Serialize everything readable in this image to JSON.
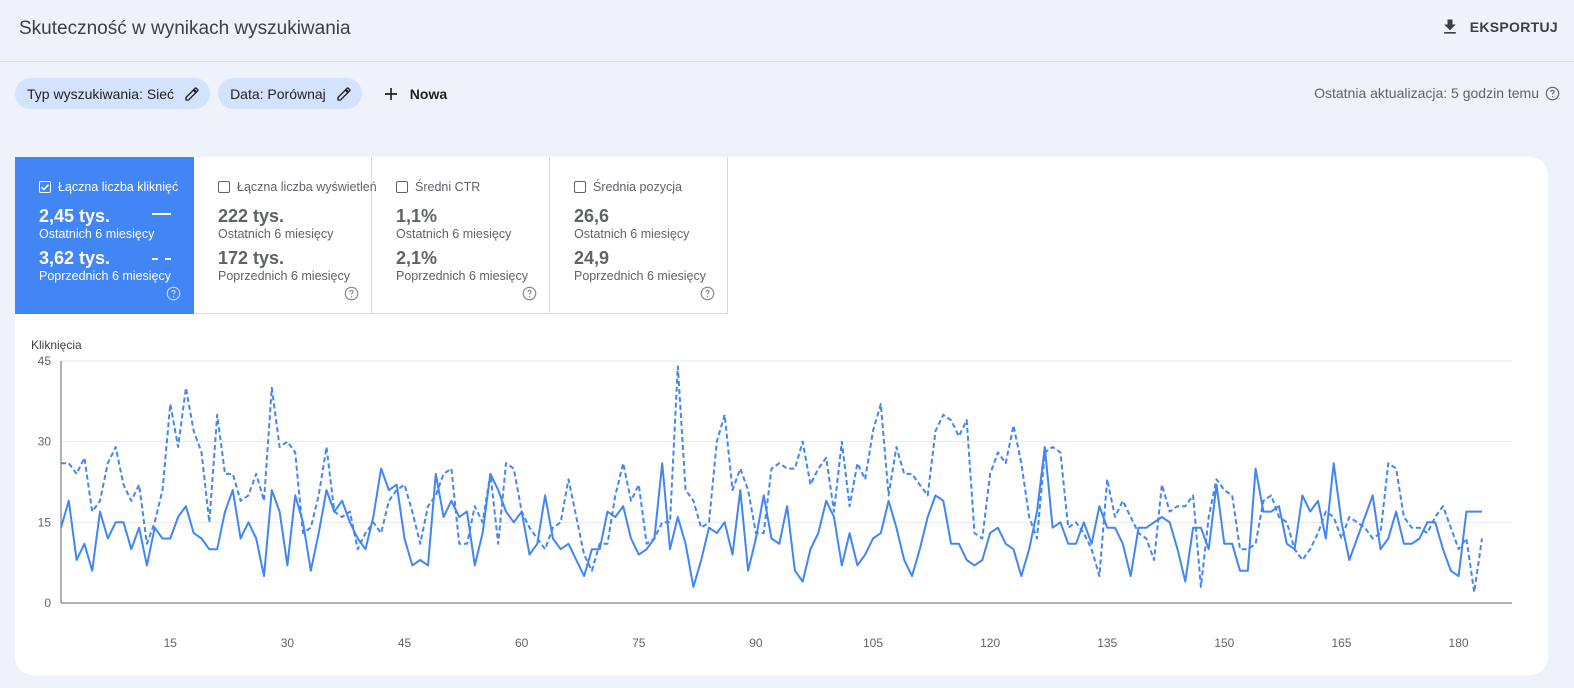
{
  "header": {
    "title": "Skuteczność w wynikach wyszukiwania",
    "export_label": "EKSPORTUJ"
  },
  "filters": {
    "chips": [
      {
        "label": "Typ wyszukiwania: Sieć"
      },
      {
        "label": "Data: Porównaj"
      }
    ],
    "new_label": "Nowa"
  },
  "last_update": "Ostatnia aktualizacja: 5 godzin temu",
  "metrics": [
    {
      "label": "Łączna liczba kliknięć",
      "checked": true,
      "current_value": "2,45 tys.",
      "current_period": "Ostatnich 6 miesięcy",
      "previous_value": "3,62 tys.",
      "previous_period": "Poprzednich 6 miesięcy"
    },
    {
      "label": "Łączna liczba wyświetleń",
      "checked": false,
      "current_value": "222 tys.",
      "current_period": "Ostatnich 6 miesięcy",
      "previous_value": "172 tys.",
      "previous_period": "Poprzednich 6 miesięcy"
    },
    {
      "label": "Średni CTR",
      "checked": false,
      "current_value": "1,1%",
      "current_period": "Ostatnich 6 miesięcy",
      "previous_value": "2,1%",
      "previous_period": "Poprzednich 6 miesięcy"
    },
    {
      "label": "Średnia pozycja",
      "checked": false,
      "current_value": "26,6",
      "current_period": "Ostatnich 6 miesięcy",
      "previous_value": "24,9",
      "previous_period": "Poprzednich 6 miesięcy"
    }
  ],
  "colors": {
    "accent": "#4285f4",
    "line": "#4285f4",
    "chip_bg": "#d3e3fd",
    "page_bg": "#eef2fb"
  },
  "icons": {
    "export": "download-icon",
    "edit": "pencil-icon",
    "add": "plus-icon",
    "help": "help-circle-icon",
    "checkbox": "checkbox-icon"
  },
  "chart_data": {
    "type": "line",
    "ylabel": "Kliknięcia",
    "ylim": [
      0,
      45
    ],
    "yticks": [
      0,
      15,
      30,
      45
    ],
    "xticks": [
      15,
      30,
      45,
      60,
      75,
      90,
      105,
      120,
      135,
      150,
      165,
      180
    ],
    "x_start": 1,
    "grid": "horizontal",
    "series": [
      {
        "style": "solid",
        "values": [
          14,
          19,
          8,
          11,
          6,
          17,
          12,
          15,
          15,
          10,
          14,
          7,
          14,
          12,
          12,
          16,
          18,
          13,
          12,
          10,
          10,
          17,
          21,
          12,
          15,
          12,
          5,
          21,
          17,
          7,
          20,
          15,
          6,
          13,
          21,
          17,
          19,
          15,
          12,
          10,
          16,
          25,
          21,
          22,
          12,
          7,
          8,
          7,
          24,
          16,
          19,
          16,
          17,
          7,
          13,
          24,
          21,
          17,
          15,
          17,
          9,
          11,
          20,
          12,
          10,
          11,
          8,
          5,
          10,
          10,
          17,
          16,
          18,
          12,
          9,
          10,
          12,
          26,
          10,
          16,
          11,
          3,
          8,
          14,
          13,
          15,
          9,
          21,
          6,
          12,
          20,
          12,
          11,
          18,
          6,
          4,
          10,
          13,
          19,
          16,
          7,
          13,
          7,
          9,
          12,
          13,
          19,
          14,
          8,
          5,
          10,
          16,
          20,
          19,
          11,
          11,
          8,
          7,
          8,
          13,
          14,
          11,
          10,
          5,
          10,
          17,
          29,
          14,
          15,
          11,
          11,
          15,
          11,
          18,
          14,
          14,
          11,
          5,
          14,
          14,
          15,
          16,
          15,
          10,
          4,
          14,
          14,
          10,
          22,
          11,
          11,
          6,
          6,
          25,
          17,
          17,
          18,
          11,
          10,
          20,
          17,
          19,
          12,
          26,
          15,
          8,
          12,
          16,
          20,
          10,
          12,
          17,
          11,
          11,
          12,
          15,
          15,
          10,
          6,
          5,
          17,
          17,
          17
        ]
      },
      {
        "style": "dashed",
        "values": [
          26,
          26,
          24,
          27,
          17,
          19,
          26,
          29,
          22,
          19,
          22,
          11,
          15,
          21,
          37,
          29,
          40,
          32,
          28,
          15,
          35,
          24,
          24,
          19,
          20,
          24,
          19,
          40,
          29,
          30,
          28,
          13,
          14,
          20,
          29,
          17,
          16,
          17,
          10,
          13,
          15,
          13,
          19,
          21,
          22,
          17,
          11,
          18,
          20,
          24,
          25,
          11,
          11,
          18,
          15,
          24,
          11,
          26,
          25,
          17,
          14,
          12,
          10,
          14,
          15,
          23,
          16,
          9,
          6,
          11,
          11,
          20,
          26,
          19,
          22,
          11,
          12,
          15,
          15,
          44,
          21,
          19,
          14,
          15,
          30,
          35,
          21,
          25,
          21,
          13,
          13,
          25,
          26,
          25,
          25,
          30,
          22,
          25,
          27,
          17,
          30,
          18,
          26,
          23,
          32,
          37,
          20,
          29,
          24,
          24,
          22,
          20,
          32,
          35,
          34,
          31,
          34,
          13,
          12,
          24,
          28,
          26,
          33,
          26,
          16,
          12,
          28,
          29,
          28,
          14,
          15,
          13,
          10,
          5,
          23,
          16,
          19,
          16,
          13,
          12,
          8,
          22,
          17,
          18,
          18,
          20,
          3,
          16,
          23,
          21,
          20,
          10,
          10,
          11,
          19,
          20,
          16,
          15,
          10,
          8,
          10,
          13,
          17,
          16,
          12,
          16,
          15,
          14,
          12,
          13,
          26,
          25,
          16,
          14,
          14,
          13,
          16,
          18,
          14,
          10,
          12,
          2,
          12
        ]
      }
    ]
  }
}
